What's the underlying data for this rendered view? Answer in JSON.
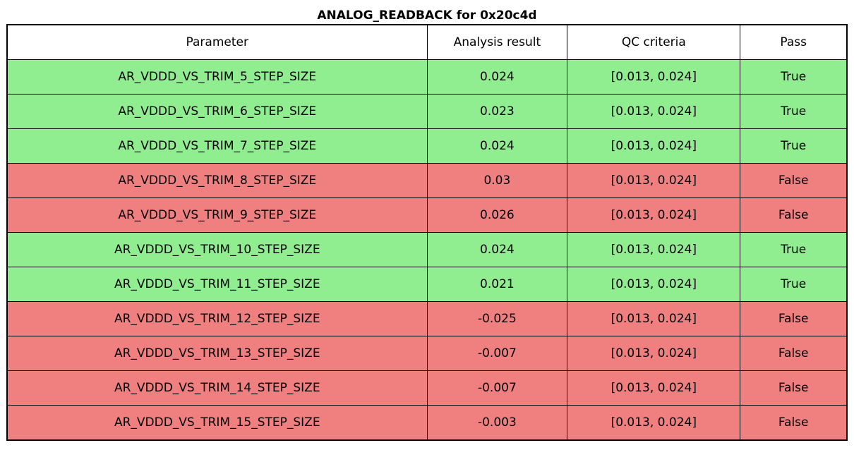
{
  "title": "ANALOG_READBACK for 0x20c4d",
  "colors": {
    "pass_row": "#90ee90",
    "fail_row": "#f08080",
    "header_bg": "#ffffff",
    "border": "#000000"
  },
  "chart_data": {
    "type": "table",
    "title": "ANALOG_READBACK for 0x20c4d",
    "columns": [
      "Parameter",
      "Analysis result",
      "QC criteria",
      "Pass"
    ],
    "rows": [
      {
        "parameter": "AR_VDDD_VS_TRIM_5_STEP_SIZE",
        "analysis_result": "0.024",
        "qc_criteria": "[0.013, 0.024]",
        "pass": "True",
        "status": "pass"
      },
      {
        "parameter": "AR_VDDD_VS_TRIM_6_STEP_SIZE",
        "analysis_result": "0.023",
        "qc_criteria": "[0.013, 0.024]",
        "pass": "True",
        "status": "pass"
      },
      {
        "parameter": "AR_VDDD_VS_TRIM_7_STEP_SIZE",
        "analysis_result": "0.024",
        "qc_criteria": "[0.013, 0.024]",
        "pass": "True",
        "status": "pass"
      },
      {
        "parameter": "AR_VDDD_VS_TRIM_8_STEP_SIZE",
        "analysis_result": "0.03",
        "qc_criteria": "[0.013, 0.024]",
        "pass": "False",
        "status": "fail"
      },
      {
        "parameter": "AR_VDDD_VS_TRIM_9_STEP_SIZE",
        "analysis_result": "0.026",
        "qc_criteria": "[0.013, 0.024]",
        "pass": "False",
        "status": "fail"
      },
      {
        "parameter": "AR_VDDD_VS_TRIM_10_STEP_SIZE",
        "analysis_result": "0.024",
        "qc_criteria": "[0.013, 0.024]",
        "pass": "True",
        "status": "pass"
      },
      {
        "parameter": "AR_VDDD_VS_TRIM_11_STEP_SIZE",
        "analysis_result": "0.021",
        "qc_criteria": "[0.013, 0.024]",
        "pass": "True",
        "status": "pass"
      },
      {
        "parameter": "AR_VDDD_VS_TRIM_12_STEP_SIZE",
        "analysis_result": "-0.025",
        "qc_criteria": "[0.013, 0.024]",
        "pass": "False",
        "status": "fail"
      },
      {
        "parameter": "AR_VDDD_VS_TRIM_13_STEP_SIZE",
        "analysis_result": "-0.007",
        "qc_criteria": "[0.013, 0.024]",
        "pass": "False",
        "status": "fail"
      },
      {
        "parameter": "AR_VDDD_VS_TRIM_14_STEP_SIZE",
        "analysis_result": "-0.007",
        "qc_criteria": "[0.013, 0.024]",
        "pass": "False",
        "status": "fail"
      },
      {
        "parameter": "AR_VDDD_VS_TRIM_15_STEP_SIZE",
        "analysis_result": "-0.003",
        "qc_criteria": "[0.013, 0.024]",
        "pass": "False",
        "status": "fail"
      }
    ]
  }
}
